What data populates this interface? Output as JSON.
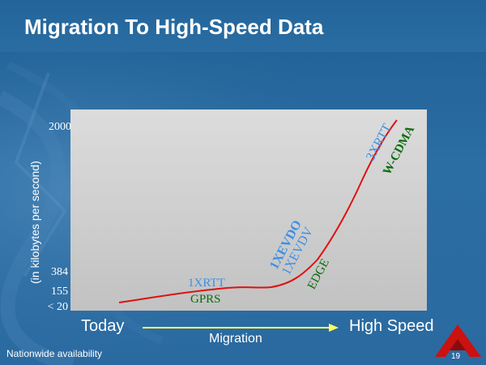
{
  "slide": {
    "title": "Migration To High-Speed Data",
    "footer_text": "Nationwide availability",
    "page_number": "19"
  },
  "colors": {
    "background": "#2a6aa0",
    "curve": "#e01010",
    "arrow": "#ffff66",
    "blue_tech": "#3b8fe6",
    "green_tech": "#0b6b0b",
    "logo": "#cc1111"
  },
  "chart_data": {
    "type": "line",
    "title": "",
    "ylabel": "(in kilobytes per second)",
    "y_ticks": [
      "2000",
      "384",
      "155",
      "< 20"
    ],
    "x_axis": {
      "left_label": "Today",
      "center_label": "Migration",
      "right_label": "High Speed"
    },
    "technologies": [
      {
        "name": "1XRTT",
        "color": "blue"
      },
      {
        "name": "GPRS",
        "color": "green"
      },
      {
        "name": "1XEVDO",
        "color": "blue"
      },
      {
        "name": "1XEVDV",
        "color": "blue"
      },
      {
        "name": "EDGE",
        "color": "green"
      },
      {
        "name": "3XRTT",
        "color": "blue"
      },
      {
        "name": "W-CDMA",
        "color": "green"
      }
    ]
  }
}
